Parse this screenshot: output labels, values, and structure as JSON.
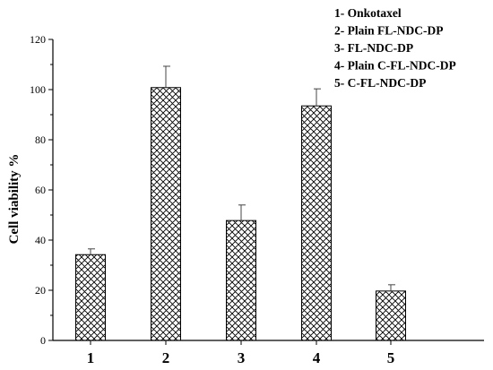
{
  "chart_data": {
    "type": "bar",
    "categories": [
      "1",
      "2",
      "3",
      "4",
      "5"
    ],
    "values": [
      34.2,
      100.8,
      47.8,
      93.5,
      19.7
    ],
    "errors": [
      2.3,
      8.5,
      6.2,
      6.8,
      2.5
    ],
    "title": "",
    "xlabel": "",
    "ylabel": "Cell viability %",
    "ylim": [
      0,
      120
    ],
    "yticks": [
      0,
      20,
      40,
      60,
      80,
      100,
      120
    ],
    "bar_pattern": "crosshatch",
    "grid": false,
    "legend_position": "top-right",
    "legend": [
      "1- Onkotaxel",
      "2- Plain FL-NDC-DP",
      "3- FL-NDC-DP",
      "4- Plain C-FL-NDC-DP",
      "5- C-FL-NDC-DP"
    ]
  }
}
